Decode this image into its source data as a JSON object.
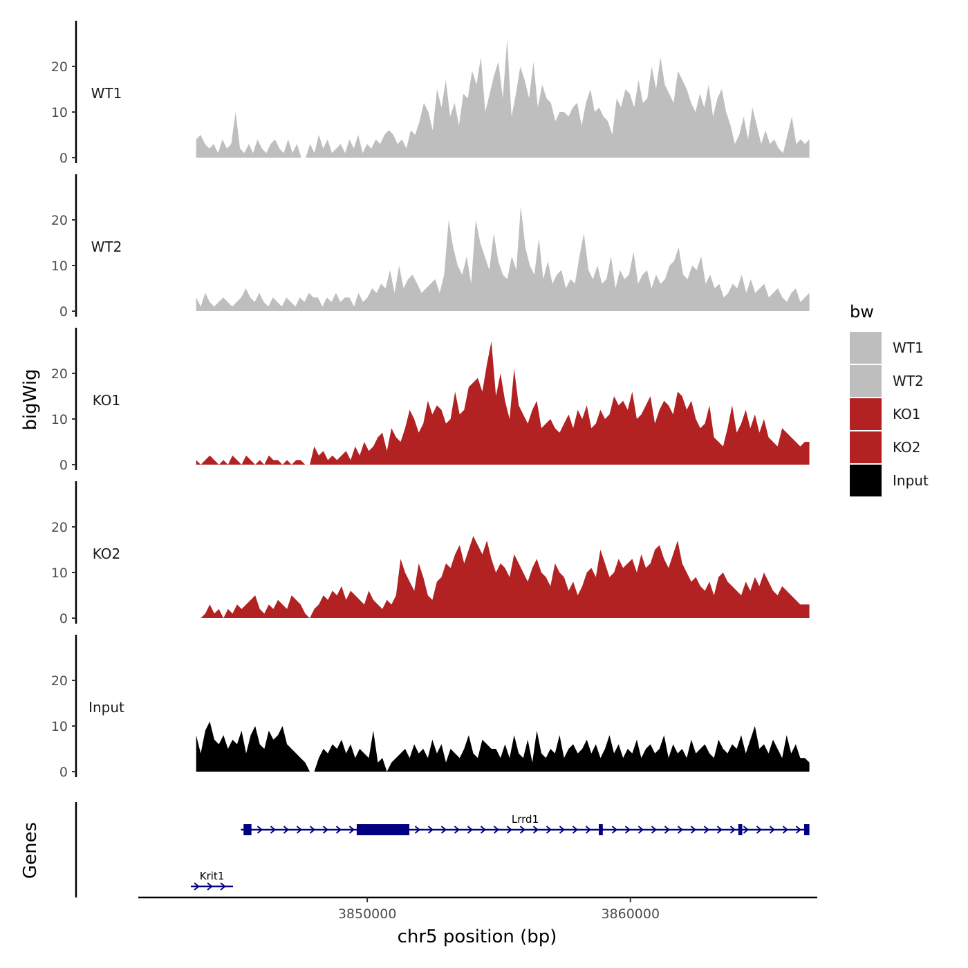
{
  "chart_data": {
    "type": "area",
    "chromosome": "chr5",
    "xlabel": "chr5 position (bp)",
    "ylabel": "bigWig",
    "genes_label": "Genes",
    "xlim": [
      3841300,
      3867100
    ],
    "x_ticks": [
      {
        "value": 3850000,
        "label": "3850000"
      },
      {
        "value": 3860000,
        "label": "3860000"
      }
    ],
    "ylim": [
      0,
      30
    ],
    "y_ticks": [
      {
        "value": 0,
        "label": "0"
      },
      {
        "value": 10,
        "label": "10"
      },
      {
        "value": 20,
        "label": "20"
      }
    ],
    "data_range": [
      3843500,
      3866800
    ],
    "legend": {
      "title": "bw",
      "entries": [
        {
          "label": "WT1",
          "color": "#bebebe"
        },
        {
          "label": "WT2",
          "color": "#bebebe"
        },
        {
          "label": "KO1",
          "color": "#b22222"
        },
        {
          "label": "KO2",
          "color": "#b22222"
        },
        {
          "label": "Input",
          "color": "#000000"
        }
      ]
    },
    "series": [
      {
        "name": "WT1",
        "color": "#bebebe",
        "values": [
          4,
          5,
          3,
          2,
          3,
          1,
          4,
          2,
          3,
          10,
          2,
          1,
          3,
          1,
          4,
          2,
          1,
          3,
          4,
          2,
          1,
          4,
          1,
          3,
          0,
          0,
          3,
          1,
          5,
          2,
          4,
          1,
          2,
          3,
          1,
          4,
          2,
          5,
          1,
          3,
          2,
          4,
          3,
          5,
          6,
          5,
          3,
          4,
          2,
          6,
          5,
          8,
          12,
          10,
          6,
          15,
          11,
          17,
          9,
          12,
          7,
          14,
          13,
          19,
          16,
          22,
          10,
          14,
          18,
          21,
          13,
          26,
          9,
          14,
          20,
          17,
          13,
          21,
          11,
          16,
          13,
          12,
          8,
          10,
          10,
          9,
          11,
          12,
          7,
          12,
          15,
          10,
          11,
          9,
          8,
          5,
          13,
          11,
          15,
          14,
          11,
          17,
          12,
          13,
          20,
          15,
          22,
          16,
          14,
          12,
          19,
          17,
          15,
          12,
          10,
          14,
          11,
          16,
          9,
          13,
          15,
          10,
          7,
          3,
          5,
          9,
          4,
          11,
          7,
          3,
          6,
          3,
          4,
          2,
          1,
          5,
          9,
          3,
          4,
          3,
          4
        ]
      },
      {
        "name": "WT2",
        "color": "#bebebe",
        "values": [
          3,
          1,
          4,
          2,
          1,
          2,
          3,
          2,
          1,
          2,
          3,
          5,
          3,
          2,
          4,
          2,
          1,
          3,
          2,
          1,
          3,
          2,
          1,
          3,
          2,
          4,
          3,
          3,
          1,
          3,
          2,
          4,
          2,
          3,
          3,
          1,
          4,
          2,
          3,
          5,
          4,
          6,
          5,
          9,
          4,
          10,
          5,
          7,
          8,
          6,
          4,
          5,
          6,
          7,
          4,
          8,
          20,
          14,
          10,
          8,
          12,
          6,
          20,
          15,
          12,
          9,
          17,
          11,
          8,
          7,
          12,
          9,
          23,
          14,
          10,
          8,
          16,
          7,
          11,
          6,
          8,
          9,
          5,
          7,
          6,
          12,
          17,
          9,
          7,
          10,
          6,
          7,
          12,
          5,
          9,
          7,
          8,
          13,
          6,
          8,
          9,
          5,
          8,
          6,
          7,
          10,
          11,
          14,
          8,
          7,
          10,
          9,
          12,
          6,
          8,
          5,
          6,
          3,
          4,
          6,
          5,
          8,
          4,
          7,
          4,
          5,
          6,
          3,
          4,
          5,
          3,
          2,
          4,
          5,
          2,
          3,
          4
        ]
      },
      {
        "name": "KO1",
        "color": "#b22222",
        "values": [
          1,
          0,
          1,
          2,
          1,
          0,
          1,
          0,
          2,
          1,
          0,
          2,
          1,
          0,
          1,
          0,
          2,
          1,
          1,
          0,
          1,
          0,
          1,
          1,
          0,
          0,
          4,
          2,
          3,
          1,
          2,
          1,
          2,
          3,
          1,
          4,
          2,
          5,
          3,
          4,
          6,
          7,
          3,
          8,
          6,
          5,
          8,
          12,
          10,
          7,
          9,
          14,
          11,
          13,
          12,
          9,
          10,
          16,
          11,
          12,
          17,
          18,
          19,
          16,
          22,
          27,
          15,
          20,
          14,
          10,
          21,
          13,
          11,
          9,
          12,
          14,
          8,
          9,
          10,
          8,
          7,
          9,
          11,
          8,
          12,
          10,
          13,
          8,
          9,
          12,
          10,
          11,
          15,
          13,
          14,
          12,
          16,
          10,
          11,
          13,
          15,
          9,
          12,
          14,
          13,
          11,
          16,
          15,
          12,
          14,
          10,
          8,
          9,
          13,
          6,
          5,
          4,
          8,
          13,
          7,
          9,
          12,
          8,
          11,
          7,
          10,
          6,
          5,
          4,
          8,
          7,
          6,
          5,
          4,
          5,
          5
        ]
      },
      {
        "name": "KO2",
        "color": "#b22222",
        "values": [
          0,
          0,
          1,
          3,
          1,
          2,
          0,
          2,
          1,
          3,
          2,
          3,
          4,
          5,
          2,
          1,
          3,
          2,
          4,
          3,
          2,
          5,
          4,
          3,
          1,
          0,
          2,
          3,
          5,
          4,
          6,
          5,
          7,
          4,
          6,
          5,
          4,
          3,
          6,
          4,
          3,
          2,
          4,
          3,
          5,
          13,
          10,
          8,
          6,
          12,
          9,
          5,
          4,
          8,
          9,
          12,
          11,
          14,
          16,
          12,
          15,
          18,
          16,
          14,
          17,
          13,
          10,
          12,
          11,
          9,
          14,
          12,
          10,
          8,
          11,
          13,
          10,
          9,
          7,
          12,
          10,
          9,
          6,
          8,
          5,
          7,
          10,
          11,
          9,
          15,
          12,
          9,
          10,
          13,
          11,
          12,
          13,
          10,
          14,
          11,
          12,
          15,
          16,
          13,
          11,
          14,
          17,
          12,
          10,
          8,
          9,
          7,
          6,
          8,
          5,
          9,
          10,
          8,
          7,
          6,
          5,
          8,
          6,
          9,
          7,
          10,
          8,
          6,
          5,
          7,
          6,
          5,
          4,
          3,
          3,
          3
        ]
      },
      {
        "name": "Input",
        "color": "#000000",
        "values": [
          8,
          4,
          9,
          11,
          7,
          6,
          8,
          5,
          7,
          6,
          9,
          4,
          8,
          10,
          6,
          5,
          9,
          7,
          8,
          10,
          6,
          5,
          4,
          3,
          2,
          0,
          0,
          3,
          5,
          4,
          6,
          5,
          7,
          4,
          6,
          3,
          5,
          4,
          3,
          9,
          2,
          3,
          0,
          2,
          3,
          4,
          5,
          3,
          6,
          4,
          5,
          3,
          7,
          4,
          6,
          2,
          5,
          4,
          3,
          5,
          8,
          4,
          3,
          7,
          6,
          5,
          5,
          3,
          6,
          3,
          8,
          4,
          3,
          7,
          2,
          9,
          4,
          3,
          5,
          4,
          8,
          3,
          5,
          6,
          4,
          5,
          7,
          4,
          6,
          3,
          5,
          8,
          4,
          6,
          3,
          5,
          4,
          7,
          3,
          5,
          6,
          4,
          5,
          8,
          3,
          6,
          4,
          5,
          3,
          7,
          4,
          5,
          6,
          4,
          3,
          7,
          5,
          4,
          6,
          5,
          8,
          4,
          7,
          10,
          5,
          6,
          4,
          7,
          5,
          3,
          8,
          4,
          6,
          3,
          3,
          2
        ]
      }
    ],
    "genes": [
      {
        "name": "Krit1",
        "start": 3843300,
        "end": 3844900,
        "strand": "+",
        "row": 2,
        "exons": []
      },
      {
        "name": "Lrrd1",
        "start": 3845200,
        "end": 3866800,
        "strand": "+",
        "row": 1,
        "exons": [
          {
            "start": 3845300,
            "end": 3845600
          },
          {
            "start": 3849600,
            "end": 3851600
          },
          {
            "start": 3858800,
            "end": 3858950
          },
          {
            "start": 3864100,
            "end": 3864250
          },
          {
            "start": 3866600,
            "end": 3866800
          }
        ]
      }
    ]
  }
}
